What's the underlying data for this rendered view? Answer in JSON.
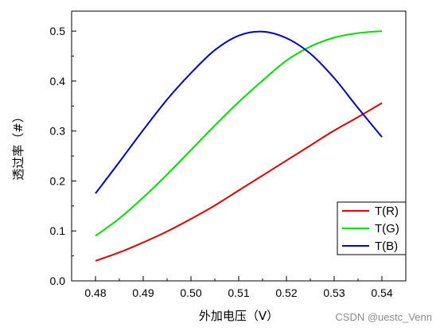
{
  "chart_data": {
    "type": "line",
    "xlabel": "外加电压（V）",
    "ylabel": "透过率（#）",
    "xlim": [
      0.475,
      0.545
    ],
    "ylim": [
      0.0,
      0.54
    ],
    "x_ticks": [
      "0.48",
      "0.49",
      "0.50",
      "0.51",
      "0.52",
      "0.53",
      "0.54"
    ],
    "y_ticks": [
      "0.0",
      "0.1",
      "0.2",
      "0.3",
      "0.4",
      "0.5"
    ],
    "grid": false,
    "legend_position": "bottom-right",
    "series": [
      {
        "name": "T(R)",
        "color": "#e00000",
        "x": [
          0.48,
          0.485,
          0.49,
          0.495,
          0.5,
          0.505,
          0.51,
          0.515,
          0.52,
          0.525,
          0.53,
          0.535,
          0.54
        ],
        "y": [
          0.04,
          0.057,
          0.077,
          0.099,
          0.124,
          0.151,
          0.181,
          0.211,
          0.241,
          0.271,
          0.301,
          0.328,
          0.356
        ]
      },
      {
        "name": "T(G)",
        "color": "#00e000",
        "x": [
          0.48,
          0.485,
          0.49,
          0.495,
          0.5,
          0.505,
          0.51,
          0.515,
          0.52,
          0.525,
          0.53,
          0.535,
          0.54
        ],
        "y": [
          0.09,
          0.125,
          0.167,
          0.213,
          0.262,
          0.311,
          0.358,
          0.401,
          0.441,
          0.469,
          0.487,
          0.496,
          0.5
        ]
      },
      {
        "name": "T(B)",
        "color": "#0000d0",
        "x": [
          0.48,
          0.485,
          0.49,
          0.495,
          0.5,
          0.505,
          0.51,
          0.515,
          0.52,
          0.525,
          0.53,
          0.535,
          0.54
        ],
        "y": [
          0.175,
          0.238,
          0.302,
          0.363,
          0.416,
          0.462,
          0.491,
          0.499,
          0.486,
          0.455,
          0.406,
          0.346,
          0.288
        ]
      }
    ]
  },
  "watermark": "CSDN @uestc_Venn"
}
